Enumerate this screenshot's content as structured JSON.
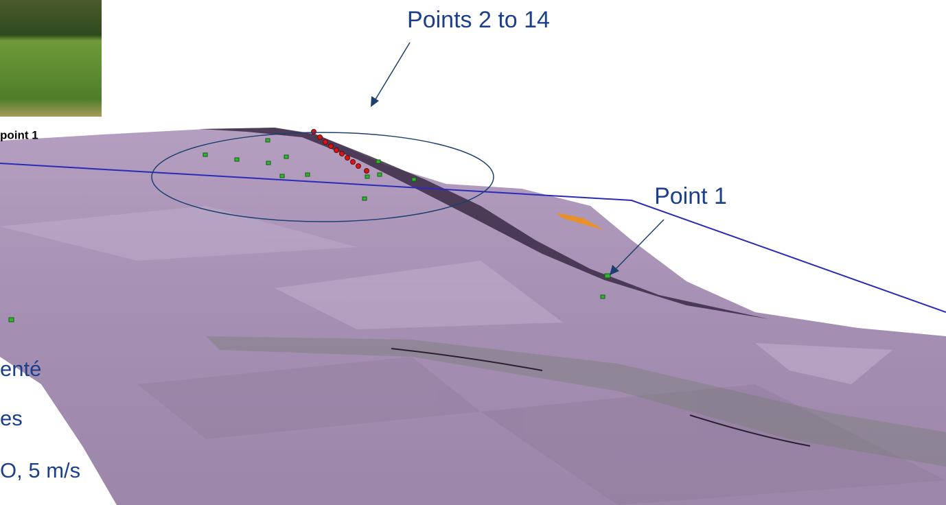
{
  "annotations": {
    "points_2_to_14": "Points 2 to 14",
    "point_1": "Point 1"
  },
  "photo_caption": "point 1",
  "side_text": [
    "enté",
    "es",
    "O, 5 m/s"
  ]
}
